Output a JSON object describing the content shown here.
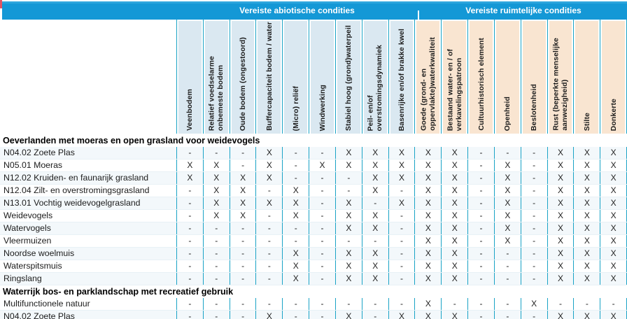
{
  "colors": {
    "band_blue": "#1498d6",
    "abiotic_column_bg": "#dae8f1",
    "spatial_column_bg": "#f9e5d1",
    "grid_line_teal": "#1aa3c6",
    "corner_mark_red": "#e25563"
  },
  "group_headers": [
    {
      "label": "Vereiste abiotische condities",
      "span": 9
    },
    {
      "label": "Vereiste ruimtelijke condities",
      "span": 8
    }
  ],
  "columns": [
    {
      "label": "Veenbodem",
      "group": 0
    },
    {
      "label": "Relatief voedselarme\nonbemeste bodem",
      "group": 0
    },
    {
      "label": "Oude bodem (ongestoord)",
      "group": 0
    },
    {
      "label": "Buffercapaciteit bodem / water",
      "group": 0
    },
    {
      "label": "(Micro) reliëf",
      "group": 0
    },
    {
      "label": "Windwerking",
      "group": 0
    },
    {
      "label": "Stabiel hoog (grond)waterpeil",
      "group": 0
    },
    {
      "label": "Peil- en/of\noverstromingsdynamiek",
      "group": 0
    },
    {
      "label": "Basenrijke en/of brakke kwel",
      "group": 0
    },
    {
      "label": "Goede (grond- en\noppervlakte)waterkwaliteit",
      "group": 1
    },
    {
      "label": "Bestaand water- en / of\nverkavelingspatroon",
      "group": 1
    },
    {
      "label": "Cultuurhistorisch element",
      "group": 1
    },
    {
      "label": "Openheid",
      "group": 1
    },
    {
      "label": "Beslotenheid",
      "group": 1
    },
    {
      "label": "Rust (beperkte menselijke\naanwezigheid)",
      "group": 1
    },
    {
      "label": "Stilte",
      "group": 1
    },
    {
      "label": "Donkerte",
      "group": 1
    }
  ],
  "sections": [
    {
      "title": "Oeverlanden met moeras en open grasland voor weidevogels",
      "rows": [
        {
          "label": "N04.02 Zoete Plas",
          "cells": [
            "-",
            "-",
            "-",
            "X",
            "-",
            "-",
            "X",
            "X",
            "X",
            "X",
            "X",
            "-",
            "-",
            "-",
            "X",
            "X",
            "X"
          ]
        },
        {
          "label": "N05.01 Moeras",
          "cells": [
            "X",
            "X",
            "-",
            "X",
            "-",
            "X",
            "X",
            "X",
            "X",
            "X",
            "X",
            "-",
            "X",
            "-",
            "X",
            "X",
            "X"
          ]
        },
        {
          "label": "N12.02 Kruiden- en faunarijk grasland",
          "cells": [
            "X",
            "X",
            "X",
            "X",
            "-",
            "-",
            "-",
            "X",
            "X",
            "X",
            "X",
            "-",
            "X",
            "-",
            "X",
            "X",
            "X"
          ]
        },
        {
          "label": "N12.04 Zilt- en overstromingsgrasland",
          "cells": [
            "-",
            "X",
            "X",
            "-",
            "X",
            "-",
            "-",
            "X",
            "-",
            "X",
            "X",
            "-",
            "X",
            "-",
            "X",
            "X",
            "X"
          ]
        },
        {
          "label": "N13.01 Vochtig weidevogelgrasland",
          "cells": [
            "-",
            "X",
            "X",
            "X",
            "X",
            "-",
            "X",
            "-",
            "X",
            "X",
            "X",
            "-",
            "X",
            "-",
            "X",
            "X",
            "X"
          ]
        },
        {
          "label": "Weidevogels",
          "cells": [
            "-",
            "X",
            "X",
            "-",
            "X",
            "-",
            "X",
            "X",
            "-",
            "X",
            "X",
            "-",
            "X",
            "-",
            "X",
            "X",
            "X"
          ]
        },
        {
          "label": "Watervogels",
          "cells": [
            "-",
            "-",
            "-",
            "-",
            "-",
            "-",
            "X",
            "X",
            "-",
            "X",
            "X",
            "-",
            "X",
            "-",
            "X",
            "X",
            "X"
          ]
        },
        {
          "label": "Vleermuizen",
          "cells": [
            "-",
            "-",
            "-",
            "-",
            "-",
            "-",
            "-",
            "-",
            "-",
            "X",
            "X",
            "-",
            "X",
            "-",
            "X",
            "X",
            "X"
          ]
        },
        {
          "label": "Noordse woelmuis",
          "cells": [
            "-",
            "-",
            "-",
            "-",
            "X",
            "-",
            "X",
            "X",
            "-",
            "X",
            "X",
            "-",
            "-",
            "-",
            "X",
            "X",
            "X"
          ]
        },
        {
          "label": "Waterspitsmuis",
          "cells": [
            "-",
            "-",
            "-",
            "-",
            "X",
            "-",
            "X",
            "X",
            "-",
            "X",
            "X",
            "-",
            "-",
            "-",
            "X",
            "X",
            "X"
          ]
        },
        {
          "label": "Ringslang",
          "cells": [
            "-",
            "-",
            "-",
            "-",
            "X",
            "-",
            "X",
            "X",
            "-",
            "X",
            "X",
            "-",
            "-",
            "-",
            "X",
            "X",
            "X"
          ]
        }
      ]
    },
    {
      "title": "Waterrijk bos- en parklandschap met recreatief gebruik",
      "rows": [
        {
          "label": "Multifunctionele natuur",
          "cells": [
            "-",
            "-",
            "-",
            "-",
            "-",
            "-",
            "-",
            "-",
            "-",
            "X",
            "-",
            "-",
            "-",
            "X",
            "-",
            "-",
            "-"
          ]
        },
        {
          "label": "N04.02 Zoete Plas",
          "cells": [
            "-",
            "-",
            "-",
            "X",
            "-",
            "-",
            "X",
            "-",
            "X",
            "X",
            "X",
            "-",
            "-",
            "-",
            "X",
            "X",
            "X"
          ]
        }
      ]
    }
  ]
}
